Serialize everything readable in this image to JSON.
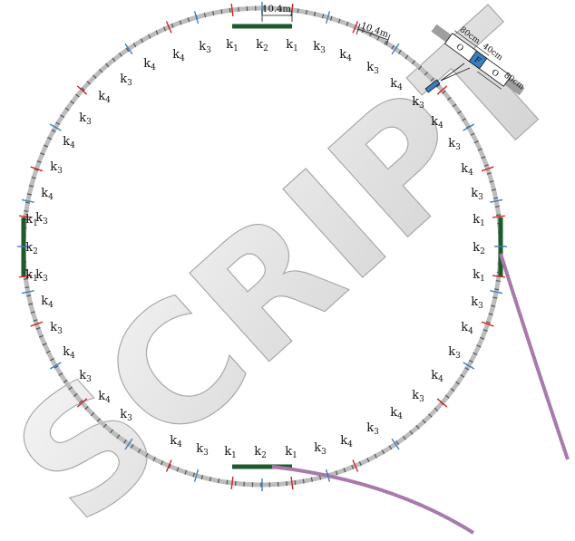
{
  "labels": {
    "top": [
      "k4",
      "k3",
      "k1",
      "k2",
      "k1",
      "k3",
      "k4"
    ],
    "bottom": [
      "k4",
      "k3",
      "k1",
      "k2",
      "k1",
      "k3",
      "k4"
    ],
    "left_upper": [
      "k4",
      "k3",
      "k4",
      "k3",
      "k4",
      "k3",
      "k4",
      "k3"
    ],
    "left_lower": [
      "k3",
      "k4",
      "k3",
      "k4",
      "k3",
      "k4",
      "k3"
    ],
    "left_mid": [
      "k1",
      "k2",
      "k1"
    ],
    "right_upper": [
      "k3",
      "k4",
      "k3",
      "k4",
      "k3",
      "k4",
      "k3"
    ],
    "right_lower": [
      "k3",
      "k4",
      "k3",
      "k4",
      "k3",
      "k4",
      "k3"
    ],
    "right_mid": [
      "k1",
      "k2",
      "k1"
    ]
  },
  "dimensions": {
    "straight": "10.4m",
    "arc": "10.4m"
  },
  "inset": {
    "seg1": "80cm",
    "seg2": "40cm",
    "seg3": "80cm",
    "left_letter": "O",
    "mid_letter": "F",
    "right_letter": "O"
  },
  "watermark": "SCRIPT",
  "colors": {
    "ring": "#bdbdbd",
    "straight": "#1e5a2e",
    "kick_red": "#d62020",
    "kick_blue": "#3a7fc2",
    "extraction": "#a77aab",
    "inset_blue": "#3a7fc2"
  }
}
